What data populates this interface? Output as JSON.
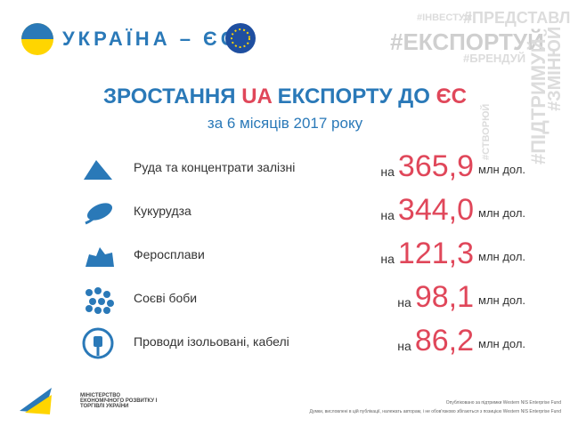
{
  "header": {
    "country_pair": "УКРАЇНА – ЄС"
  },
  "hashtags": {
    "top": [
      "#ІНВЕСТУЙ",
      "#ПРЕДСТАВЛЯЙ"
    ],
    "main": "#ЕКСПОРТУЙ",
    "sub": "#БРЕНДУЙ",
    "vertical": [
      "#СТВОРЮЙ",
      "#ПІДТРИМУЙ",
      "#ЗМІНЮЙ"
    ]
  },
  "title": {
    "parts": [
      "ЗРОСТАННЯ ",
      "UA",
      " ЕКСПОРТУ ДО ",
      "ЄС"
    ],
    "subtitle": "за 6 місяців 2017 року"
  },
  "items": [
    {
      "name": "Руда та концентрати залізні",
      "prefix": "на",
      "value": "365,9",
      "unit": "млн дол."
    },
    {
      "name": "Кукурудза",
      "prefix": "на",
      "value": "344,0",
      "unit": "млн дол."
    },
    {
      "name": "Феросплави",
      "prefix": "на",
      "value": "121,3",
      "unit": "млн дол."
    },
    {
      "name": "Соєві боби",
      "prefix": "на",
      "value": "98,1",
      "unit": "млн дол."
    },
    {
      "name": "Проводи ізольовані, кабелі",
      "prefix": "на",
      "value": "86,2",
      "unit": "млн дол."
    }
  ],
  "footer": {
    "ministry": "МІНІСТЕРСТВО ЕКОНОМІЧНОГО РОЗВИТКУ І ТОРГІВЛІ УКРАЇНИ",
    "note1": "Опубліковано за підтримки Western NIS Enterprise Fund",
    "note2": "Думки, висловлені в цій публікації, належать авторам, і не обов'язково збігаються з позицією Western NIS Enterprise Fund"
  }
}
